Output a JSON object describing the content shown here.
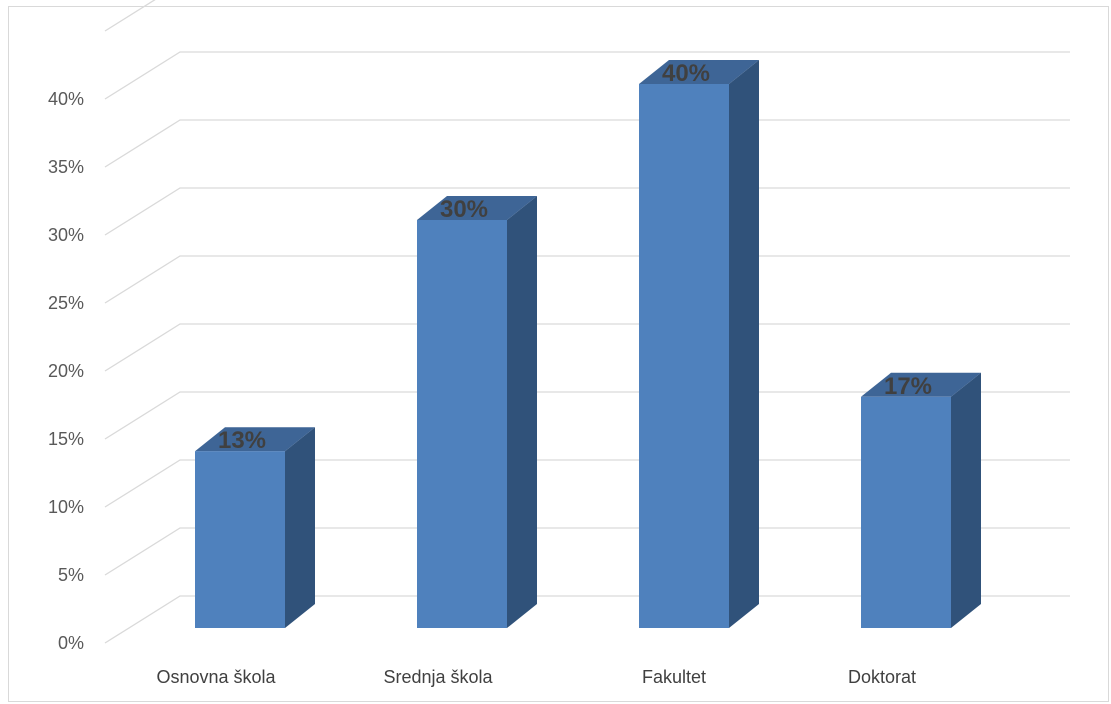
{
  "chart_data": {
    "type": "bar",
    "style": "3d-column",
    "categories": [
      "Osnovna škola",
      "Srednja škola",
      "Fakultet",
      "Doktorat"
    ],
    "values": [
      13,
      30,
      40,
      17
    ],
    "data_labels": [
      "13%",
      "30%",
      "40%",
      "17%"
    ],
    "y_ticks": [
      "0%",
      "5%",
      "10%",
      "15%",
      "20%",
      "25%",
      "30%",
      "35%",
      "40%"
    ],
    "ylim": [
      0,
      40
    ],
    "title": "",
    "xlabel": "",
    "ylabel": "",
    "grid": true,
    "legend": "none",
    "colors": {
      "bar_front": "#4f81bd",
      "bar_side": "#30527a",
      "bar_top": "#3e6596",
      "grid": "#d9d9d9",
      "label_text": "#404040",
      "tick_text": "#595959"
    }
  }
}
